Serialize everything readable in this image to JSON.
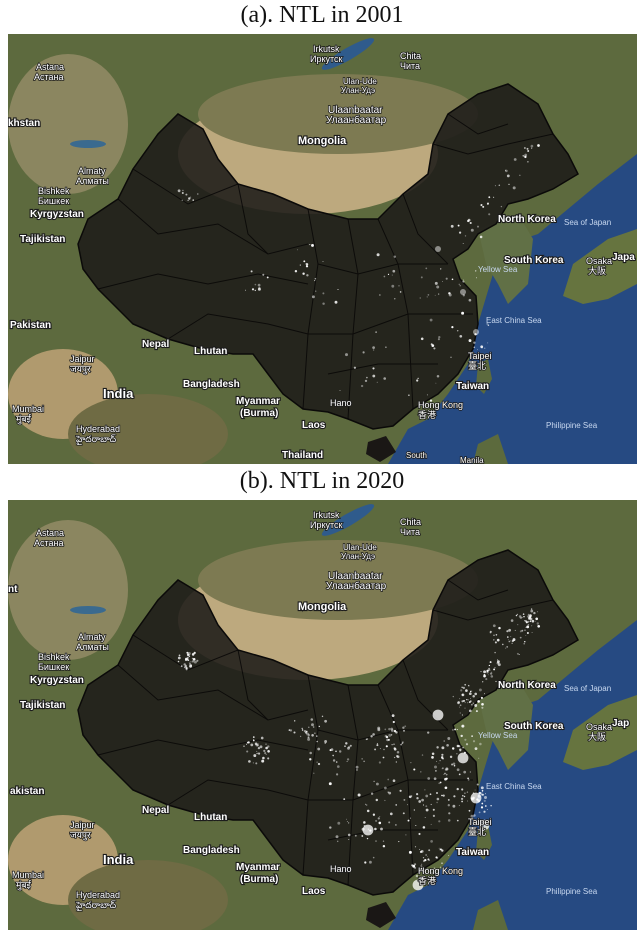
{
  "panels": [
    {
      "caption": "(a). NTL in 2001",
      "year": "2001",
      "light_level": 0.25,
      "labels": {
        "irkutsk": "Irkutsk",
        "irkutsk_ru": "Иркутск",
        "chita": "Chita",
        "chita_ru": "Чита",
        "ulanude": "Ulan-Ude",
        "ulanude_ru": "Улан-Удэ",
        "ulaanbaatar": "Ulaanbaatar",
        "ulaanbaatar_mn": "Улаанбаатар",
        "mongolia": "Mongolia",
        "astana": "Astana",
        "astana_kz": "Астана",
        "kazakhstan": "khstan",
        "almaty": "Almaty",
        "almaty_kz": "Алматы",
        "bishkek": "Bishkek",
        "bishkek_kg": "Бишкек",
        "kyrgyzstan": "Kyrgyzstan",
        "tajikistan": "Tajikistan",
        "pakistan": "Pakistan",
        "nepal": "Nepal",
        "bhutan": "Lhutan",
        "bangladesh": "Bangladesh",
        "india": "India",
        "jaipur": "Jaipur",
        "jaipur_hi": "जयपुर",
        "mumbai": "Mumbai",
        "mumbai_mr": "मुंबई",
        "hyderabad": "Hyderabad",
        "hyderabad_te": "హైదరాబాద్",
        "myanmar": "Myanmar",
        "burma": "(Burma)",
        "laos": "Laos",
        "thailand": "Thailand",
        "hanoi": "Hano",
        "hongkong": "Hong Kong",
        "hongkong_zh": "香港",
        "taiwan": "Taiwan",
        "taipei": "Taipei",
        "taipei_zh": "臺北",
        "northkorea": "North Korea",
        "southkorea": "South Korea",
        "seaofjapan": "Sea of Japan",
        "yellowsea": "Yellow Sea",
        "eastchinasea": "East China Sea",
        "philippinesea": "Philippine Sea",
        "osaka": "Osaka",
        "osaka_jp": "大阪",
        "japan": "Japa",
        "manila": "Manila",
        "south": "South"
      }
    },
    {
      "caption": "(b). NTL in 2020",
      "year": "2020",
      "light_level": 0.85,
      "labels": {
        "irkutsk": "Irkutsk",
        "irkutsk_ru": "Иркутск",
        "chita": "Chita",
        "chita_ru": "Чита",
        "ulanude": "Ulan-Ude",
        "ulanude_ru": "Улан-Удэ",
        "ulaanbaatar": "Ulaanbaatar",
        "ulaanbaatar_mn": "Улаанбаатар",
        "mongolia": "Mongolia",
        "astana": "Astana",
        "astana_kz": "Астана",
        "kazakhstan": "nt",
        "almaty": "Almaty",
        "almaty_kz": "Алматы",
        "bishkek": "Bishkek",
        "bishkek_kg": "Бишкек",
        "kyrgyzstan": "Kyrgyzstan",
        "tajikistan": "Tajikistan",
        "pakistan": "akistan",
        "nepal": "Nepal",
        "bhutan": "Lhutan",
        "bangladesh": "Bangladesh",
        "india": "India",
        "jaipur": "Jaipur",
        "jaipur_hi": "जयपुर",
        "mumbai": "Mumbai",
        "mumbai_mr": "मुंबई",
        "hyderabad": "Hyderabad",
        "hyderabad_te": "హైదరాబాద్",
        "myanmar": "Myanmar",
        "burma": "(Burma)",
        "laos": "Laos",
        "thailand": "",
        "hanoi": "Hano",
        "hongkong": "Hong Kong",
        "hongkong_zh": "香港",
        "taiwan": "Taiwan",
        "taipei": "Taipei",
        "taipei_zh": "臺北",
        "northkorea": "North Korea",
        "southkorea": "South Korea",
        "seaofjapan": "Sea of Japan",
        "yellowsea": "Yellow Sea",
        "eastchinasea": "East China Sea",
        "philippinesea": "Philippine Sea",
        "osaka": "Osaka",
        "osaka_jp": "大阪",
        "japan": "Jap",
        "manila": "",
        "south": ""
      }
    }
  ],
  "colors": {
    "ocean": "#264a82",
    "land_green": "#5a6b3c",
    "desert": "#b7a47c",
    "mask": "#1e1b19",
    "lights": "#ffffff"
  }
}
